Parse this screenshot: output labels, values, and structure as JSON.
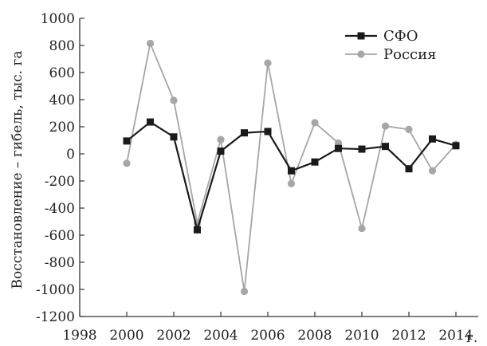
{
  "chart_data": {
    "type": "line",
    "ylabel": "Восстановление – гибель, тыс. га",
    "xlabel": "",
    "x_unit_label": "г.",
    "xlim": [
      1998,
      2014
    ],
    "ylim": [
      -1200,
      1000
    ],
    "x_ticks": [
      1998,
      2000,
      2002,
      2004,
      2006,
      2008,
      2010,
      2012,
      2014
    ],
    "y_ticks": [
      -1200,
      -1000,
      -800,
      -600,
      -400,
      -200,
      0,
      200,
      400,
      600,
      800,
      1000
    ],
    "grid": false,
    "legend_position": "top-right",
    "x": [
      2000,
      2001,
      2002,
      2003,
      2004,
      2005,
      2006,
      2007,
      2008,
      2009,
      2010,
      2011,
      2012,
      2013,
      2014
    ],
    "series": [
      {
        "name": "СФО",
        "color": "#1a1a1a",
        "marker": "square",
        "values": [
          95,
          235,
          125,
          -560,
          20,
          155,
          165,
          -125,
          -60,
          40,
          35,
          55,
          -110,
          110,
          60
        ]
      },
      {
        "name": "Россия",
        "color": "#a6a6a6",
        "marker": "circle",
        "values": [
          -70,
          815,
          395,
          -510,
          105,
          -1015,
          670,
          -220,
          230,
          80,
          -550,
          205,
          180,
          -125,
          70
        ]
      }
    ]
  }
}
